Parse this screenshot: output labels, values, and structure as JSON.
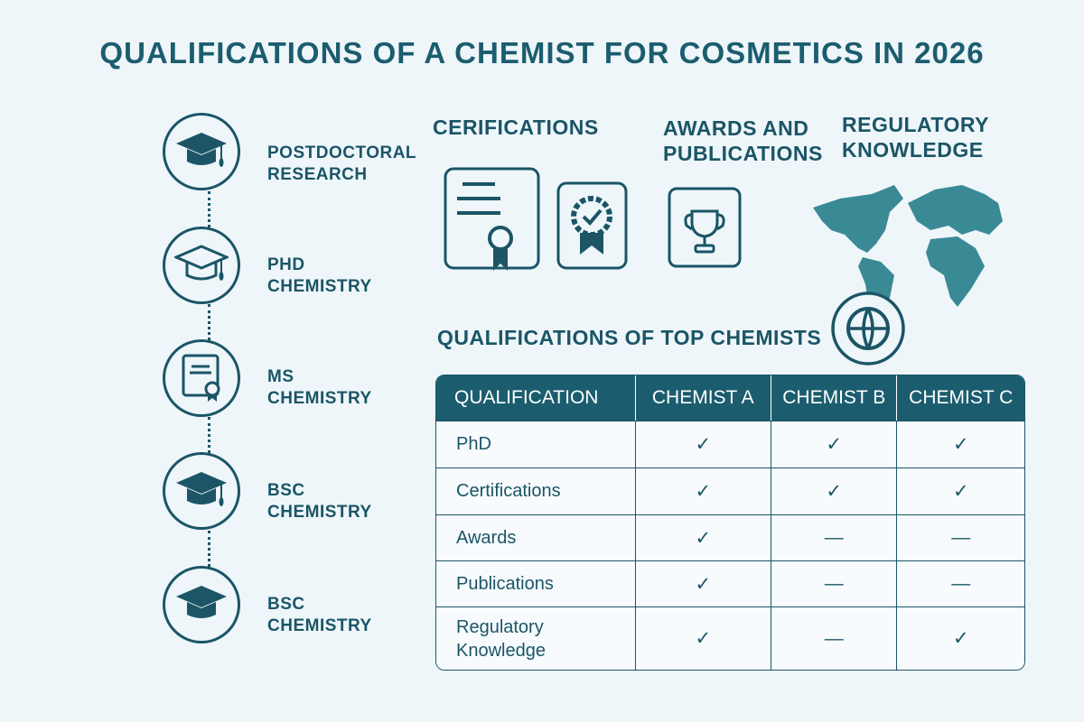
{
  "title": "QUALIFICATIONS OF A CHEMIST FOR COSMETICS IN 2026",
  "timeline": [
    {
      "label1": "POSTDOCTORAL",
      "label2": "RESEARCH",
      "icon": "graduation-cap-icon"
    },
    {
      "label1": "PHD",
      "label2": "CHEMISTRY",
      "icon": "graduation-cap-outline-icon"
    },
    {
      "label1": "MS",
      "label2": "CHEMISTRY",
      "icon": "diploma-icon"
    },
    {
      "label1": "BSC",
      "label2": "CHEMISTRY",
      "icon": "graduation-cap-icon"
    },
    {
      "label1": "BSC",
      "label2": "CHEMISTRY",
      "icon": "graduation-cap-icon"
    }
  ],
  "sections": {
    "certifications": "CERIFICATIONS",
    "awards1": "AWARDS AND",
    "awards2": "PUBLICATIONS",
    "regulatory1": "REGULATORY",
    "regulatory2": "KNOWLEDGE",
    "table_title": "QUALIFICATIONS OF TOP CHEMISTS"
  },
  "table": {
    "headers": [
      "QUALIFICATION",
      "CHEMIST A",
      "CHEMIST B",
      "CHEMIST C"
    ],
    "rows": [
      {
        "q": "PhD",
        "a": "✓",
        "b": "✓",
        "c": "✓"
      },
      {
        "q": "Certifications",
        "a": "✓",
        "b": "✓",
        "c": "✓"
      },
      {
        "q": "Awards",
        "a": "✓",
        "b": "—",
        "c": "—"
      },
      {
        "q": "Publications",
        "a": "✓",
        "b": "—",
        "c": "—"
      },
      {
        "q": "Regulatory Knowledge",
        "a": "✓",
        "b": "—",
        "c": "✓"
      }
    ]
  },
  "colors": {
    "primary": "#1b5d6e",
    "background": "#eef6fa",
    "map": "#3a8a96"
  }
}
